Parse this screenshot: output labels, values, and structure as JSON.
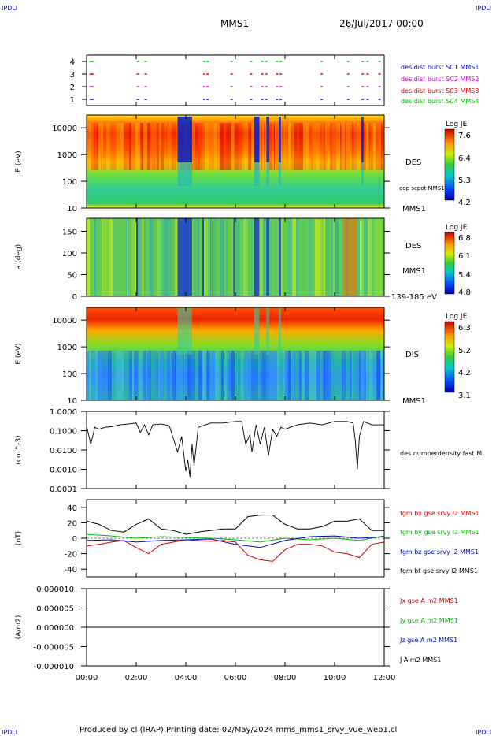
{
  "header": {
    "corner_label": "IPDLI",
    "title": "MMS1",
    "date": "26/Jul/2017 00:00"
  },
  "footer": {
    "text": "Produced by cl (IRAP)   Printing date: 02/May/2024   mms_mms1_srvy_vue_web1.cl"
  },
  "colors": {
    "blue": "#0000cc",
    "magenta": "#cc00cc",
    "red": "#cc0000",
    "green": "#00bb00",
    "black": "#000000"
  },
  "chart_data": [
    {
      "type": "scatter",
      "panel": "burst-availability",
      "ylim": [
        0.5,
        4.5
      ],
      "yticks": [
        "1",
        "2",
        "3",
        "4"
      ],
      "legend_placement": "right",
      "series": [
        {
          "name": "des dist burst SC1 MMS1",
          "y": 1,
          "color": "#0000cc",
          "x": [
            "00:07",
            "00:12",
            "02:01",
            "02:20",
            "04:42",
            "04:50",
            "05:48",
            "06:35",
            "07:02",
            "07:12",
            "07:38",
            "07:47",
            "09:26",
            "10:30",
            "11:05",
            "11:17",
            "11:46"
          ]
        },
        {
          "name": "des dist burst SC2 MMS2",
          "y": 2,
          "color": "#cc00cc",
          "x": [
            "00:07",
            "00:12",
            "02:01",
            "02:20",
            "04:42",
            "04:50",
            "05:48",
            "06:35",
            "07:02",
            "07:12",
            "07:38",
            "07:47",
            "09:26",
            "10:30",
            "11:05",
            "11:17",
            "11:46"
          ]
        },
        {
          "name": "des dist burst SC3 MMS3",
          "y": 3,
          "color": "#cc0000",
          "x": [
            "00:07",
            "00:12",
            "02:01",
            "02:20",
            "04:42",
            "04:50",
            "05:48",
            "06:35",
            "07:02",
            "07:12",
            "07:38",
            "07:47",
            "09:26",
            "10:30",
            "11:05",
            "11:17",
            "11:46"
          ]
        },
        {
          "name": "des dist burst SC4 MMS4",
          "y": 4,
          "color": "#00bb00",
          "x": [
            "00:07",
            "00:12",
            "02:01",
            "02:20",
            "04:42",
            "04:50",
            "05:48",
            "06:35",
            "07:02",
            "07:12",
            "07:38",
            "07:47",
            "09:26",
            "10:30",
            "11:05",
            "11:17",
            "11:46"
          ]
        }
      ]
    },
    {
      "type": "heatmap",
      "panel": "des-energy",
      "ylabel": "E (eV)",
      "yscale": "log",
      "ylim": [
        10,
        30000
      ],
      "yticks": [
        "10",
        "100",
        "1000",
        "10000"
      ],
      "right_labels": [
        "DES",
        "edp scpot MMS1",
        "MMS1"
      ],
      "colorbar": {
        "title": "Log JE",
        "ticks": [
          "7.6",
          "6.4",
          "5.3",
          "4.2"
        ]
      },
      "features": {
        "low_flux_gaps": [
          [
            "03:40",
            "04:15"
          ],
          [
            "06:45",
            "06:58"
          ],
          [
            "07:15",
            "07:22"
          ],
          [
            "07:45",
            "07:50"
          ],
          [
            "11:05",
            "11:10"
          ]
        ],
        "peak_band_eV": [
          1000,
          10000
        ]
      }
    },
    {
      "type": "heatmap",
      "panel": "des-pitch-angle",
      "ylabel": "a (deg)",
      "ylim": [
        0,
        180
      ],
      "yticks": [
        "0",
        "50",
        "100",
        "150"
      ],
      "right_labels": [
        "DES",
        "MMS1",
        "139-185 eV"
      ],
      "colorbar": {
        "title": "Log JE",
        "ticks": [
          "6.8",
          "6.1",
          "5.4",
          "4.8"
        ]
      }
    },
    {
      "type": "heatmap",
      "panel": "dis-energy",
      "ylabel": "E (eV)",
      "yscale": "log",
      "ylim": [
        10,
        30000
      ],
      "yticks": [
        "10",
        "100",
        "1000",
        "10000"
      ],
      "right_labels": [
        "DIS",
        "MMS1"
      ],
      "colorbar": {
        "title": "Log JE",
        "ticks": [
          "6.3",
          "5.2",
          "4.2",
          "3.1"
        ]
      }
    },
    {
      "type": "line",
      "panel": "density",
      "ylabel": "(cm^-3)",
      "yscale": "log",
      "ylim": [
        0.0001,
        1.0
      ],
      "yticks": [
        "1.0000",
        "0.1000",
        "0.0100",
        "0.0010",
        "0.0001"
      ],
      "series": [
        {
          "name": "des numberdensity fast M",
          "color": "#000000",
          "x": [
            "00:00",
            "00:10",
            "00:20",
            "00:30",
            "00:45",
            "01:00",
            "01:20",
            "01:40",
            "02:00",
            "02:10",
            "02:20",
            "02:30",
            "02:40",
            "03:00",
            "03:20",
            "03:40",
            "03:50",
            "04:00",
            "04:05",
            "04:10",
            "04:15",
            "04:20",
            "04:30",
            "05:00",
            "05:30",
            "06:00",
            "06:15",
            "06:25",
            "06:35",
            "06:40",
            "06:50",
            "07:00",
            "07:10",
            "07:20",
            "07:30",
            "07:40",
            "07:50",
            "08:00",
            "08:30",
            "09:00",
            "09:30",
            "10:00",
            "10:30",
            "10:45",
            "10:50",
            "10:55",
            "11:00",
            "11:10",
            "11:30",
            "12:00"
          ],
          "y": [
            0.18,
            0.02,
            0.15,
            0.12,
            0.15,
            0.16,
            0.2,
            0.22,
            0.25,
            0.08,
            0.2,
            0.06,
            0.2,
            0.22,
            0.18,
            0.008,
            0.05,
            0.0008,
            0.003,
            0.0004,
            0.02,
            0.0015,
            0.15,
            0.25,
            0.25,
            0.3,
            0.3,
            0.02,
            0.06,
            0.008,
            0.2,
            0.02,
            0.15,
            0.005,
            0.12,
            0.05,
            0.15,
            0.12,
            0.2,
            0.25,
            0.2,
            0.3,
            0.3,
            0.25,
            0.03,
            0.001,
            0.05,
            0.3,
            0.2,
            0.2
          ]
        }
      ]
    },
    {
      "type": "line",
      "panel": "magnetic-field",
      "ylabel": "(nT)",
      "ylim": [
        -50,
        50
      ],
      "yticks": [
        "40",
        "20",
        "0",
        "-20",
        "-40"
      ],
      "series": [
        {
          "name": "fgm bx gse srvy l2 MMS1",
          "color": "#cc0000",
          "x": [
            "00:00",
            "00:30",
            "01:00",
            "01:30",
            "02:00",
            "02:30",
            "03:00",
            "03:30",
            "04:00",
            "04:30",
            "05:00",
            "05:30",
            "06:00",
            "06:30",
            "07:00",
            "07:30",
            "08:00",
            "08:30",
            "09:00",
            "09:30",
            "10:00",
            "10:30",
            "11:00",
            "11:30",
            "12:00"
          ],
          "y": [
            -10,
            -8,
            -5,
            -3,
            -12,
            -20,
            -8,
            -5,
            -2,
            -3,
            -4,
            -3,
            -5,
            -22,
            -28,
            -30,
            -15,
            -8,
            -8,
            -10,
            -18,
            -20,
            -25,
            -8,
            -5
          ]
        },
        {
          "name": "fgm by gse srvy l2 MMS1",
          "color": "#00bb00",
          "x": [
            "00:00",
            "01:00",
            "02:00",
            "03:00",
            "04:00",
            "05:00",
            "06:00",
            "07:00",
            "08:00",
            "09:00",
            "10:00",
            "11:00",
            "12:00"
          ],
          "y": [
            5,
            3,
            0,
            2,
            1,
            0,
            -2,
            -5,
            0,
            -2,
            0,
            -3,
            3
          ]
        },
        {
          "name": "fgm bz gse srvy l2 MMS1",
          "color": "#0000cc",
          "x": [
            "00:00",
            "01:00",
            "02:00",
            "03:00",
            "04:00",
            "05:00",
            "06:00",
            "07:00",
            "08:00",
            "09:00",
            "10:00",
            "11:00",
            "12:00"
          ],
          "y": [
            -3,
            -2,
            -5,
            -3,
            -2,
            -1,
            -8,
            -12,
            -3,
            2,
            3,
            0,
            2
          ]
        },
        {
          "name": "fgm bt gse srvy l2 MMS1",
          "color": "#000000",
          "x": [
            "00:00",
            "00:30",
            "01:00",
            "01:30",
            "02:00",
            "02:30",
            "03:00",
            "03:30",
            "04:00",
            "04:30",
            "05:00",
            "05:30",
            "06:00",
            "06:30",
            "07:00",
            "07:30",
            "08:00",
            "08:30",
            "09:00",
            "09:30",
            "10:00",
            "10:30",
            "11:00",
            "11:30",
            "12:00"
          ],
          "y": [
            22,
            18,
            10,
            8,
            18,
            25,
            12,
            10,
            5,
            8,
            10,
            12,
            12,
            28,
            30,
            30,
            18,
            12,
            12,
            15,
            22,
            22,
            25,
            10,
            10
          ]
        }
      ]
    },
    {
      "type": "line",
      "panel": "current-density",
      "ylabel": "(A/m2)",
      "ylim": [
        -1e-05,
        1e-05
      ],
      "yticks": [
        "0.000010",
        "0.000005",
        "0.000000",
        "-0.000005",
        "-0.000010"
      ],
      "series": [
        {
          "name": "Jx gse A m2 MMS1",
          "color": "#cc0000",
          "x": [
            "00:00",
            "12:00"
          ],
          "y": [
            0,
            0
          ]
        },
        {
          "name": "Jy gse A m2 MMS1",
          "color": "#00bb00",
          "x": [
            "00:00",
            "12:00"
          ],
          "y": [
            0,
            0
          ]
        },
        {
          "name": "Jz gse A m2 MMS1",
          "color": "#0000cc",
          "x": [
            "00:00",
            "12:00"
          ],
          "y": [
            0,
            0
          ]
        },
        {
          "name": "J A m2 MMS1",
          "color": "#000000",
          "x": [
            "00:00",
            "12:00"
          ],
          "y": [
            0,
            0
          ]
        }
      ]
    }
  ],
  "time_axis": {
    "labels": [
      "00:00",
      "02:00",
      "04:00",
      "06:00",
      "08:00",
      "10:00",
      "12:00"
    ],
    "range_hours": [
      0,
      12
    ]
  }
}
